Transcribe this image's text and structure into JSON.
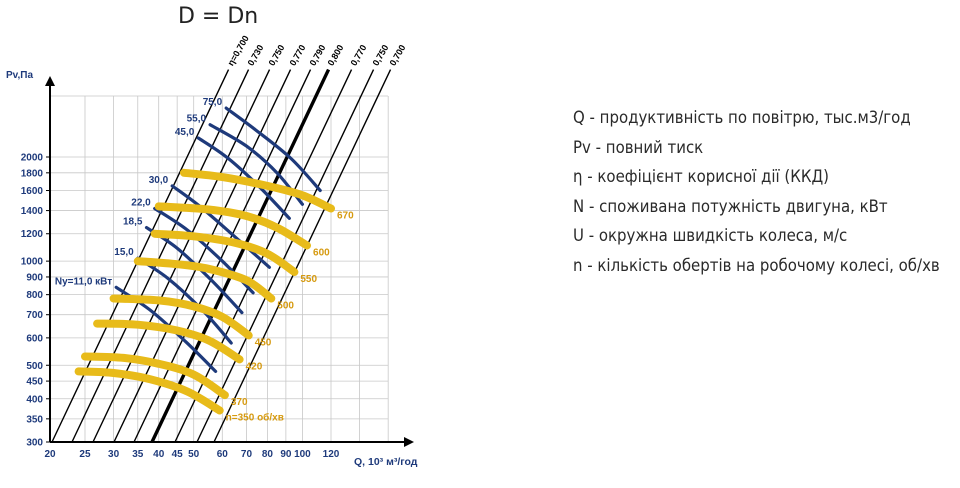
{
  "title": "D = Dn",
  "chart_data": {
    "type": "line",
    "ylabel": "Pv,Па",
    "xlabel": "Q, 10³ м³/год",
    "x_ticks": [
      20,
      25,
      30,
      35,
      40,
      45,
      50,
      60,
      70,
      80,
      90,
      100,
      120
    ],
    "y_ticks": [
      300,
      350,
      400,
      450,
      500,
      600,
      700,
      800,
      900,
      1000,
      1200,
      1400,
      1600,
      1800,
      2000
    ],
    "xlim": [
      20,
      160
    ],
    "ylim": [
      300,
      4000
    ],
    "x_scale": "log",
    "y_scale": "log",
    "grid": true,
    "efficiency_label_prefix": "η=",
    "efficiency_lines": [
      "0,700",
      "0,730",
      "0,750",
      "0,770",
      "0,790",
      "0,800",
      "0,770",
      "0,750",
      "0,700"
    ],
    "power_curves": [
      {
        "label": "75,0",
        "points": [
          [
            61.5,
            2770
          ],
          [
            74,
            2400
          ],
          [
            93,
            1980
          ],
          [
            112,
            1600
          ]
        ]
      },
      {
        "label": "55,0",
        "points": [
          [
            55.5,
            2480
          ],
          [
            70,
            2150
          ],
          [
            85,
            1800
          ],
          [
            100,
            1460
          ]
        ]
      },
      {
        "label": "45,0",
        "points": [
          [
            51.5,
            2270
          ],
          [
            62,
            1990
          ],
          [
            76,
            1640
          ],
          [
            92,
            1330
          ]
        ]
      },
      {
        "label": "30,0",
        "points": [
          [
            43.6,
            1650
          ],
          [
            52,
            1440
          ],
          [
            66,
            1160
          ],
          [
            81,
            960
          ]
        ]
      },
      {
        "label": "22,0",
        "points": [
          [
            39,
            1420
          ],
          [
            48,
            1230
          ],
          [
            60,
            1000
          ],
          [
            73,
            810
          ]
        ]
      },
      {
        "label": "18,5",
        "points": [
          [
            37,
            1250
          ],
          [
            45,
            1090
          ],
          [
            56,
            880
          ],
          [
            68,
            710
          ]
        ]
      },
      {
        "label": "15,0",
        "points": [
          [
            35,
            1020
          ],
          [
            42.5,
            890
          ],
          [
            53,
            720
          ],
          [
            63.5,
            580
          ]
        ]
      },
      {
        "label": "Ny=11,0 кВт",
        "points": [
          [
            30.5,
            840
          ],
          [
            38,
            720
          ],
          [
            47.5,
            585
          ],
          [
            57.5,
            480
          ]
        ]
      }
    ],
    "speed_curves": [
      {
        "label": "670",
        "points": [
          [
            47,
            1800
          ],
          [
            60,
            1750
          ],
          [
            80,
            1650
          ],
          [
            100,
            1550
          ],
          [
            120,
            1420
          ]
        ]
      },
      {
        "label": "600",
        "points": [
          [
            40,
            1440
          ],
          [
            55,
            1410
          ],
          [
            70,
            1350
          ],
          [
            85,
            1250
          ],
          [
            103,
            1110
          ]
        ]
      },
      {
        "label": "550",
        "points": [
          [
            39,
            1200
          ],
          [
            50,
            1180
          ],
          [
            65,
            1130
          ],
          [
            80,
            1050
          ],
          [
            95,
            930
          ]
        ]
      },
      {
        "label": "500",
        "points": [
          [
            35,
            1000
          ],
          [
            45,
            980
          ],
          [
            55,
            950
          ],
          [
            70,
            880
          ],
          [
            82,
            780
          ]
        ]
      },
      {
        "label": "450",
        "points": [
          [
            30,
            780
          ],
          [
            40,
            770
          ],
          [
            50,
            740
          ],
          [
            60,
            690
          ],
          [
            71,
            610
          ]
        ]
      },
      {
        "label": "420",
        "points": [
          [
            27,
            660
          ],
          [
            35,
            655
          ],
          [
            45,
            630
          ],
          [
            55,
            590
          ],
          [
            67,
            520
          ]
        ]
      },
      {
        "label": "370",
        "points": [
          [
            25,
            530
          ],
          [
            32,
            525
          ],
          [
            40,
            505
          ],
          [
            50,
            470
          ],
          [
            61,
            410
          ]
        ]
      },
      {
        "label": "n=350 об/хв",
        "points": [
          [
            24,
            480
          ],
          [
            30,
            475
          ],
          [
            38,
            455
          ],
          [
            48,
            420
          ],
          [
            59,
            370
          ]
        ]
      }
    ],
    "legend_lines": [
      "Q - продуктивність по повітрю, тыс.м3/год",
      "Pv - повний тиск",
      "η - коефіцієнт корисної дії (ККД)",
      "N - споживана потужність двигуна, кВт",
      "U - окружна швидкість колеса, м/с",
      "n - кількість обертів на робочому колесі, об/хв"
    ],
    "colors": {
      "power": "#1e3a7b",
      "speed": "#e8bb1a",
      "speed_label": "#d69a10",
      "efficiency": "#000000",
      "grid": "#c8c8c8",
      "power_label": "#1e3a7b"
    }
  }
}
